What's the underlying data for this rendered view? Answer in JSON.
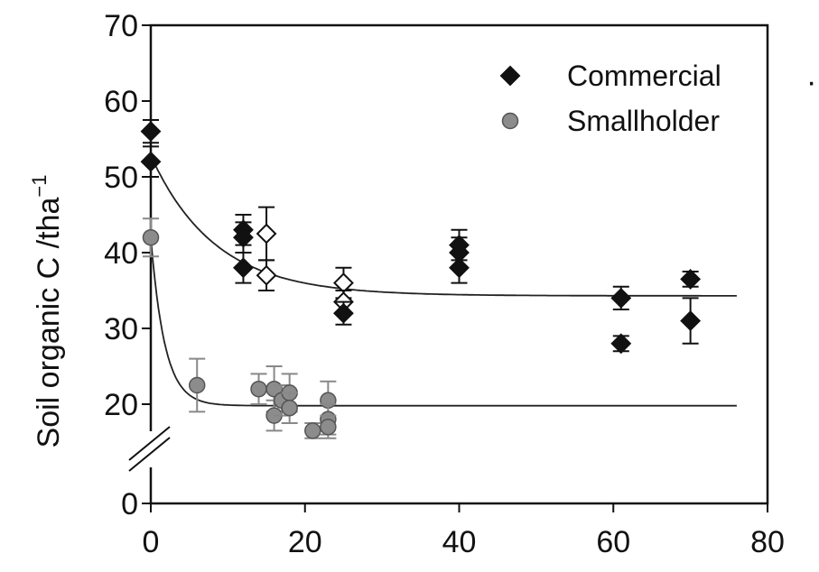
{
  "chart_data": {
    "type": "scatter",
    "title": "",
    "xlabel": "",
    "ylabel": "Soil organic C /tha",
    "ylabel_superscript": "−1",
    "xlim": [
      0,
      80
    ],
    "ylim": [
      0,
      70
    ],
    "x_ticks": [
      "0",
      "20",
      "40",
      "60",
      "80"
    ],
    "y_ticks": [
      "0",
      "20",
      "30",
      "40",
      "50",
      "60",
      "70"
    ],
    "y_axis_break": "between 0 and 20",
    "grid": false,
    "legend_position": "top-right",
    "stray_mark": "·",
    "series": [
      {
        "name": "Commercial",
        "marker": "diamond",
        "color": "#111111",
        "points": [
          {
            "x": 0,
            "y": 56,
            "err": 1.5
          },
          {
            "x": 0,
            "y": 52,
            "err": 2
          },
          {
            "x": 12,
            "y": 43,
            "err": 2
          },
          {
            "x": 12,
            "y": 42,
            "err": 2
          },
          {
            "x": 12,
            "y": 38,
            "err": 2
          },
          {
            "x": 15,
            "y": 42.5,
            "err": 3.5,
            "open": true
          },
          {
            "x": 15,
            "y": 37,
            "err": 2,
            "open": true
          },
          {
            "x": 25,
            "y": 36,
            "err": 2,
            "open": true
          },
          {
            "x": 25,
            "y": 33.5,
            "err": 1.5,
            "open": true
          },
          {
            "x": 25,
            "y": 32,
            "err": 1.5
          },
          {
            "x": 40,
            "y": 41,
            "err": 2
          },
          {
            "x": 40,
            "y": 40,
            "err": 2
          },
          {
            "x": 40,
            "y": 38,
            "err": 2
          },
          {
            "x": 61,
            "y": 34,
            "err": 1.5
          },
          {
            "x": 61,
            "y": 28,
            "err": 1
          },
          {
            "x": 70,
            "y": 36.5,
            "err": 1
          },
          {
            "x": 70,
            "y": 31,
            "err": 3
          }
        ],
        "fit": {
          "asymptote": 34.3,
          "amplitude": 18.5,
          "rate": 0.12
        }
      },
      {
        "name": "Smallholder",
        "marker": "circle",
        "color": "#8c8c8c",
        "points": [
          {
            "x": 0,
            "y": 42,
            "err": 2.5
          },
          {
            "x": 6,
            "y": 22.5,
            "err": 3.5
          },
          {
            "x": 14,
            "y": 22,
            "err": 2
          },
          {
            "x": 16,
            "y": 22,
            "err": 3
          },
          {
            "x": 16,
            "y": 18.5,
            "err": 2
          },
          {
            "x": 17,
            "y": 20.5,
            "err": 2
          },
          {
            "x": 18,
            "y": 21.5,
            "err": 2.5
          },
          {
            "x": 18,
            "y": 19.5,
            "err": 2
          },
          {
            "x": 21,
            "y": 16.5,
            "err": 1
          },
          {
            "x": 23,
            "y": 20.5,
            "err": 2.5
          },
          {
            "x": 23,
            "y": 18,
            "err": 2
          },
          {
            "x": 23,
            "y": 17,
            "err": 1.5
          }
        ],
        "fit": {
          "asymptote": 19.8,
          "amplitude": 22.2,
          "rate": 0.55
        }
      }
    ]
  }
}
